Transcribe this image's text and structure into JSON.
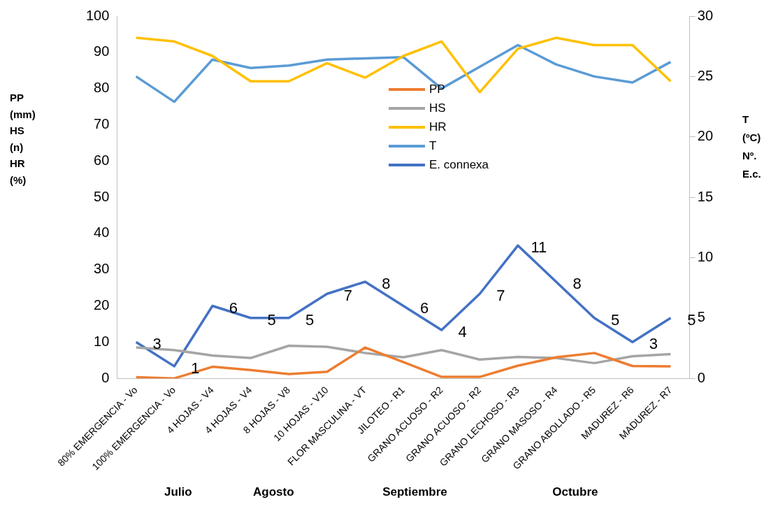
{
  "chart_data": {
    "type": "line",
    "categories": [
      "80% EMERGENCIA - Vo",
      "100% EMERGENCIA - Vo",
      "4 HOJAS - V4",
      "4 HOJAS - V4",
      "8 HOJAS - V8",
      "10 HOJAS - V10",
      "FLOR MASCULINA - VT",
      "JILOTEO - R1",
      "GRANO ACUOSO - R2",
      "GRANO ACUOSO - R2",
      "GRANO LECHOSO - R3",
      "GRANO MASOSO - R4",
      "GRANO ABOLLADO - R5",
      "MADUREZ - R6",
      "MADUREZ - R7"
    ],
    "series": [
      {
        "name": "PP",
        "color": "#ed7d31",
        "values": [
          0.3,
          0,
          3.2,
          2.3,
          1.2,
          1.8,
          8.5,
          4.5,
          0.4,
          0.4,
          3.5,
          5.8,
          7,
          3.4,
          3.3
        ]
      },
      {
        "name": "HS",
        "color": "#a5a5a5",
        "values": [
          8.5,
          7.8,
          6.3,
          5.6,
          9,
          8.7,
          7,
          5.8,
          7.8,
          5.2,
          5.9,
          5.6,
          4.2,
          6.1,
          6.7
        ]
      },
      {
        "name": "HR",
        "color": "#ffc000",
        "values": [
          94,
          93,
          89,
          82,
          82,
          87,
          83,
          89,
          93,
          79,
          91,
          94,
          92,
          92,
          82
        ]
      },
      {
        "name": "T",
        "color": "#5b9bd5",
        "axis": "y2",
        "values": [
          25,
          22.9,
          26.4,
          25.7,
          25.9,
          26.4,
          26.5,
          26.6,
          24,
          25.8,
          27.6,
          26,
          25,
          24.5,
          26.2
        ]
      },
      {
        "name": "E. connexa",
        "color": "#4472c4",
        "axis": "y2",
        "values": [
          3,
          1,
          6,
          5,
          5,
          7,
          8,
          6,
          4,
          7,
          11,
          8,
          5,
          3,
          5
        ],
        "value_labels": [
          "3",
          "1",
          "6",
          "5",
          "5",
          "7",
          "8",
          "6",
          "4",
          "7",
          "11",
          "8",
          "5",
          "3",
          "5"
        ]
      }
    ],
    "ylabel": "PP\n(mm)\nHS\n(n)\nHR\n(%)",
    "y2label": "T\n(ºC)\nNº.\nE.c.",
    "ylim": [
      0,
      100
    ],
    "yticks": [
      0,
      10,
      20,
      30,
      40,
      50,
      60,
      70,
      80,
      90,
      100
    ],
    "y2lim": [
      0,
      30
    ],
    "y2ticks": [
      0,
      5,
      10,
      15,
      20,
      25,
      30
    ],
    "grid": false,
    "legend": "top",
    "marker": "none",
    "annotations": [
      "Julio",
      "Agosto",
      "Septiembre",
      "Octubre"
    ]
  }
}
